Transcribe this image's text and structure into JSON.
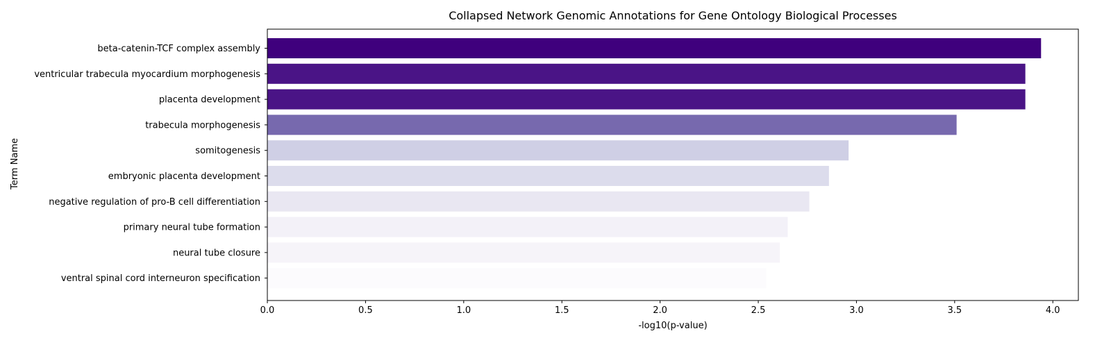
{
  "chart_data": {
    "type": "bar",
    "orientation": "horizontal",
    "title": "Collapsed Network Genomic Annotations for Gene Ontology Biological Processes",
    "xlabel": "-log10(p-value)",
    "ylabel": "Term Name",
    "xlim": [
      0,
      4.13
    ],
    "xticks": [
      0.0,
      0.5,
      1.0,
      1.5,
      2.0,
      2.5,
      3.0,
      3.5,
      4.0
    ],
    "xtick_labels": [
      "0.0",
      "0.5",
      "1.0",
      "1.5",
      "2.0",
      "2.5",
      "3.0",
      "3.5",
      "4.0"
    ],
    "grid": false,
    "categories": [
      "beta-catenin-TCF complex assembly",
      "ventricular trabecula myocardium morphogenesis",
      "placenta development",
      "trabecula morphogenesis",
      "somitogenesis",
      "embryonic placenta development",
      "negative regulation of pro-B cell differentiation",
      "primary neural tube formation",
      "neural tube closure",
      "ventral spinal cord interneuron specification"
    ],
    "values": [
      3.94,
      3.86,
      3.86,
      3.51,
      2.96,
      2.86,
      2.76,
      2.65,
      2.61,
      2.54
    ],
    "colors": [
      "#3f007d",
      "#4a1486",
      "#4a1486",
      "#7769ae",
      "#cfcfe5",
      "#dcdcec",
      "#e9e7f2",
      "#f3f1f8",
      "#f6f4f9",
      "#fcfbfd"
    ]
  }
}
